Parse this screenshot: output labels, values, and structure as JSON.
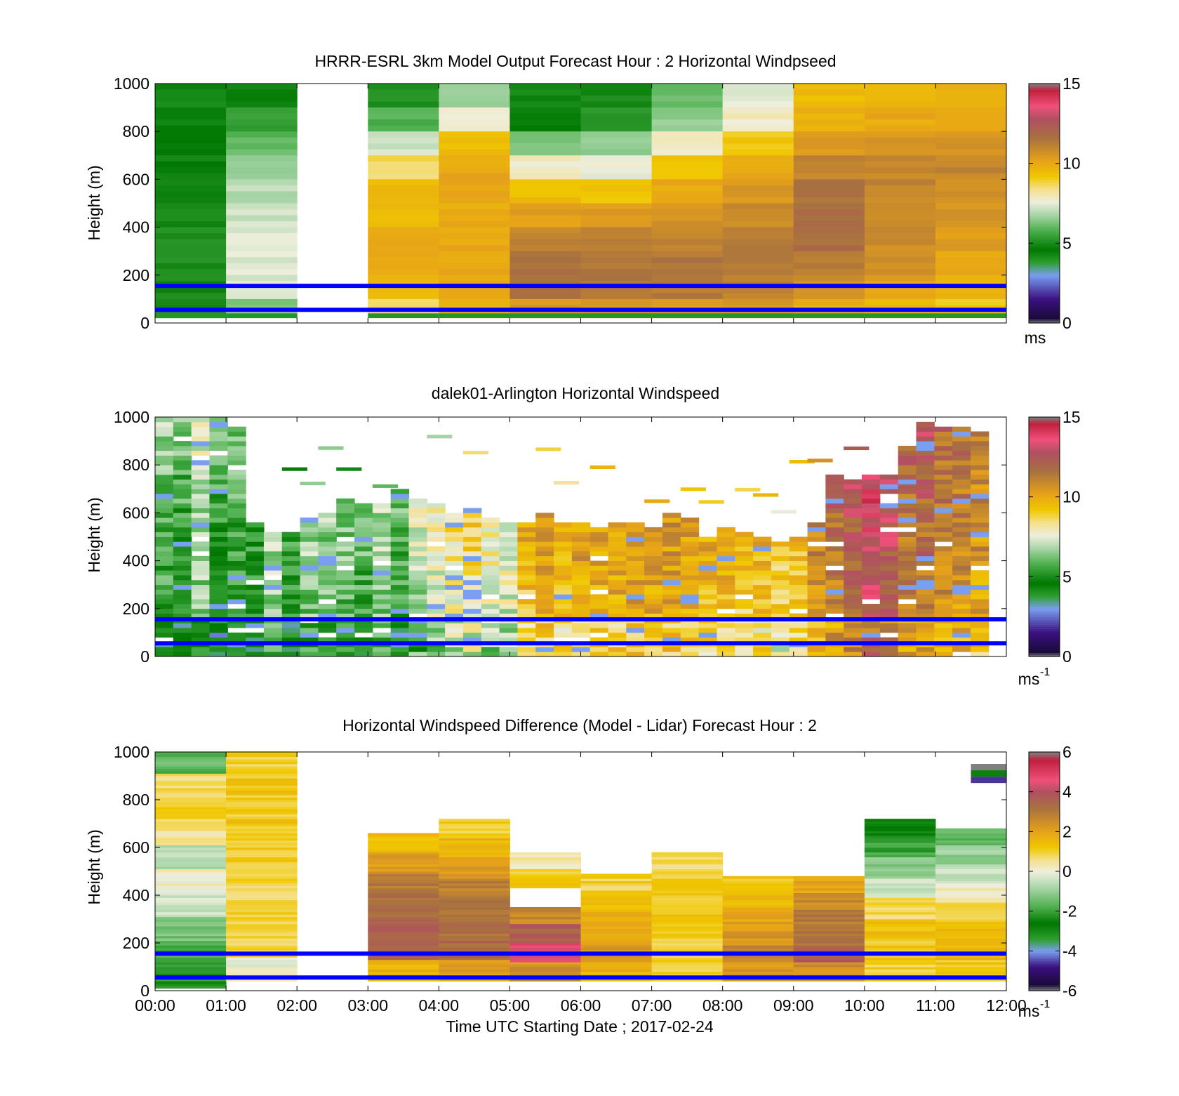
{
  "chart_data": [
    {
      "type": "heatmap",
      "title": "HRRR-ESRL 3km Model Output   Forecast Hour : 2 Horizontal Windpseed",
      "ylabel": "Height (m)",
      "xlabel": "",
      "ylim": [
        0,
        1000
      ],
      "yticks": [
        "0",
        "200",
        "400",
        "600",
        "800",
        "1000"
      ],
      "x_hours": [
        0,
        12
      ],
      "colorbar": {
        "min": 0,
        "max": 15,
        "ticks": [
          "0",
          "5",
          "10",
          "15"
        ],
        "unit": "ms",
        "unit_sup": ""
      },
      "reference_lines_m": [
        55,
        155
      ],
      "rows_m": [
        1000,
        900,
        800,
        700,
        600,
        500,
        400,
        300,
        200,
        100,
        0
      ],
      "columns": [
        {
          "t": 0,
          "values": [
            4.2,
            4.4,
            4.6,
            4.8,
            5.0,
            5.0,
            5.0,
            5.0,
            5.0,
            5.0
          ]
        },
        {
          "t": 1,
          "values": [
            4.8,
            5.5,
            6.0,
            6.5,
            7.0,
            7.2,
            7.4,
            7.4,
            7.4,
            6.5
          ]
        },
        {
          "t": 2,
          "values": [
            null,
            null,
            null,
            null,
            null,
            null,
            null,
            null,
            null,
            null
          ]
        },
        {
          "t": 3,
          "values": [
            5.0,
            5.8,
            7.2,
            8.6,
            9.5,
            9.6,
            9.9,
            10.1,
            9.7,
            8.5
          ]
        },
        {
          "t": 4,
          "values": [
            6.5,
            7.8,
            9.4,
            10.0,
            10.0,
            10.0,
            10.0,
            10.0,
            10.0,
            9.6
          ]
        },
        {
          "t": 5,
          "values": [
            4.2,
            4.6,
            6.2,
            7.8,
            9.5,
            10.3,
            11.0,
            11.6,
            11.5,
            10.5
          ]
        },
        {
          "t": 6,
          "values": [
            5.0,
            5.4,
            6.4,
            7.6,
            9.4,
            10.4,
            11.2,
            11.5,
            11.5,
            10.5
          ]
        },
        {
          "t": 7,
          "values": [
            6.0,
            6.6,
            7.8,
            9.3,
            10.0,
            10.6,
            11.0,
            11.4,
            11.3,
            10.5
          ]
        },
        {
          "t": 8,
          "values": [
            7.4,
            7.8,
            9.2,
            10.0,
            10.5,
            10.9,
            11.2,
            11.3,
            11.2,
            10.4
          ]
        },
        {
          "t": 9,
          "values": [
            9.5,
            9.8,
            10.5,
            11.0,
            11.5,
            11.7,
            11.7,
            11.3,
            10.8,
            10.0
          ]
        },
        {
          "t": 10,
          "values": [
            9.6,
            10.0,
            10.6,
            11.0,
            11.0,
            11.0,
            10.8,
            10.6,
            10.2,
            9.6
          ]
        },
        {
          "t": 11,
          "values": [
            9.8,
            10.2,
            10.7,
            11.0,
            10.8,
            10.6,
            10.3,
            10.0,
            9.8,
            9.2
          ]
        }
      ]
    },
    {
      "type": "heatmap",
      "title": "dalek01-Arlington  Horizontal Windspeed",
      "ylabel": "Height (m)",
      "xlabel": "",
      "ylim": [
        0,
        1000
      ],
      "yticks": [
        "0",
        "200",
        "400",
        "600",
        "800",
        "1000"
      ],
      "x_hours": [
        0,
        12
      ],
      "colorbar": {
        "min": 0,
        "max": 15,
        "ticks": [
          "0",
          "5",
          "10",
          "15"
        ],
        "unit": "ms",
        "unit_sup": "-1"
      },
      "reference_lines_m": [
        55,
        155
      ],
      "profiles_per_hour": 4,
      "profiles": [
        {
          "top": 1000,
          "base": 5.0
        },
        {
          "top": 1000,
          "base": 4.6
        },
        {
          "top": 1000,
          "base": 6.0
        },
        {
          "top": 1000,
          "base": 4.4
        },
        {
          "top": 960,
          "base": 4.8
        },
        {
          "top": 560,
          "base": 4.6
        },
        {
          "top": 520,
          "base": 6.2
        },
        {
          "top": 520,
          "base": 5.0
        },
        {
          "top": 580,
          "base": 6.0
        },
        {
          "top": 600,
          "base": 5.8
        },
        {
          "top": 660,
          "base": 5.6
        },
        {
          "top": 640,
          "base": 5.2
        },
        {
          "top": 640,
          "base": 6.0
        },
        {
          "top": 700,
          "base": 5.0
        },
        {
          "top": 660,
          "base": 6.4
        },
        {
          "top": 640,
          "base": 6.8
        },
        {
          "top": 600,
          "base": 7.6
        },
        {
          "top": 620,
          "base": 8.0
        },
        {
          "top": 580,
          "base": 7.2
        },
        {
          "top": 560,
          "base": 7.0
        },
        {
          "top": 560,
          "base": 9.0
        },
        {
          "top": 600,
          "base": 9.6
        },
        {
          "top": 560,
          "base": 9.2
        },
        {
          "top": 560,
          "base": 9.6
        },
        {
          "top": 540,
          "base": 9.4
        },
        {
          "top": 560,
          "base": 9.6
        },
        {
          "top": 560,
          "base": 9.8
        },
        {
          "top": 540,
          "base": 9.6
        },
        {
          "top": 600,
          "base": 9.8
        },
        {
          "top": 580,
          "base": 9.4
        },
        {
          "top": 500,
          "base": 9.2
        },
        {
          "top": 540,
          "base": 9.2
        },
        {
          "top": 520,
          "base": 8.6
        },
        {
          "top": 500,
          "base": 9.0
        },
        {
          "top": 480,
          "base": 8.4
        },
        {
          "top": 500,
          "base": 8.8
        },
        {
          "top": 560,
          "base": 10.2
        },
        {
          "top": 760,
          "base": 10.8
        },
        {
          "top": 740,
          "base": 11.4
        },
        {
          "top": 760,
          "base": 12.4
        },
        {
          "top": 760,
          "base": 11.8
        },
        {
          "top": 900,
          "base": 10.6
        },
        {
          "top": 980,
          "base": 11.0
        },
        {
          "top": 960,
          "base": 10.4
        },
        {
          "top": 960,
          "base": 10.2
        },
        {
          "top": 960,
          "base": 9.8
        }
      ]
    },
    {
      "type": "heatmap",
      "title": "Horizontal Windspeed Difference (Model - Lidar) Forecast Hour : 2",
      "ylabel": "Height (m)",
      "xlabel": "Time UTC  Starting Date ; 2017-02-24",
      "ylim": [
        0,
        1000
      ],
      "yticks": [
        "0",
        "200",
        "400",
        "600",
        "800",
        "1000"
      ],
      "xticks": [
        "00:00",
        "01:00",
        "02:00",
        "03:00",
        "04:00",
        "05:00",
        "06:00",
        "07:00",
        "08:00",
        "09:00",
        "10:00",
        "11:00",
        "12:00"
      ],
      "x_hours": [
        0,
        12
      ],
      "colorbar": {
        "min": -6,
        "max": 6,
        "ticks": [
          "-6",
          "-4",
          "-2",
          "0",
          "2",
          "4",
          "6"
        ],
        "unit": "ms",
        "unit_sup": "-1"
      },
      "reference_lines_m": [
        55,
        155
      ],
      "columns": [
        {
          "t": 0,
          "top": 1000,
          "bottom": 10,
          "values": [
            -1.6,
            0.8,
            1.0,
            0.6,
            -0.6,
            0.2,
            -0.4,
            -1.4,
            -1.8,
            -2.2
          ]
        },
        {
          "t": 1,
          "top": 1000,
          "bottom": 40,
          "values": [
            1.0,
            1.2,
            1.0,
            1.2,
            1.1,
            0.9,
            0.9,
            1.0,
            1.0,
            0.0
          ]
        },
        {
          "t": 2,
          "top": 0,
          "bottom": 0,
          "values": []
        },
        {
          "t": 3,
          "top": 660,
          "bottom": 40,
          "values": [
            1.4,
            2.2,
            3.0,
            3.2,
            3.6,
            3.4,
            1.6
          ]
        },
        {
          "t": 4,
          "top": 720,
          "bottom": 40,
          "values": [
            1.0,
            1.6,
            2.2,
            2.8,
            3.0,
            3.2,
            3.4,
            2.0
          ]
        },
        {
          "t": 5,
          "top": 580,
          "bottom": 40,
          "values": [
            0.4,
            1.2,
            null,
            2.6,
            3.6,
            4.6,
            2.4
          ]
        },
        {
          "t": 6,
          "top": 490,
          "bottom": 40,
          "values": [
            1.0,
            1.4,
            1.6,
            2.0,
            2.2,
            1.6
          ]
        },
        {
          "t": 7,
          "top": 580,
          "bottom": 40,
          "values": [
            0.8,
            1.0,
            1.0,
            1.2,
            1.0,
            1.0,
            1.0
          ]
        },
        {
          "t": 8,
          "top": 480,
          "bottom": 40,
          "values": [
            1.2,
            1.6,
            2.0,
            2.2,
            2.6,
            2.2
          ]
        },
        {
          "t": 9,
          "top": 480,
          "bottom": 40,
          "values": [
            2.0,
            2.6,
            3.0,
            3.2,
            3.6,
            2.4
          ]
        },
        {
          "t": 10,
          "top": 720,
          "bottom": 40,
          "values": [
            -2.8,
            -2.0,
            -1.2,
            -0.4,
            0.8,
            1.4,
            1.2,
            1.0
          ]
        },
        {
          "t": 11,
          "top": 680,
          "bottom": 40,
          "values": [
            -1.6,
            -1.0,
            -0.4,
            0.2,
            0.8,
            1.4,
            1.6,
            1.2
          ]
        }
      ],
      "fragment_11_30": {
        "top": 950,
        "bottom": 870,
        "values": [
          -6.0,
          -2.8,
          -4.6
        ]
      }
    }
  ]
}
